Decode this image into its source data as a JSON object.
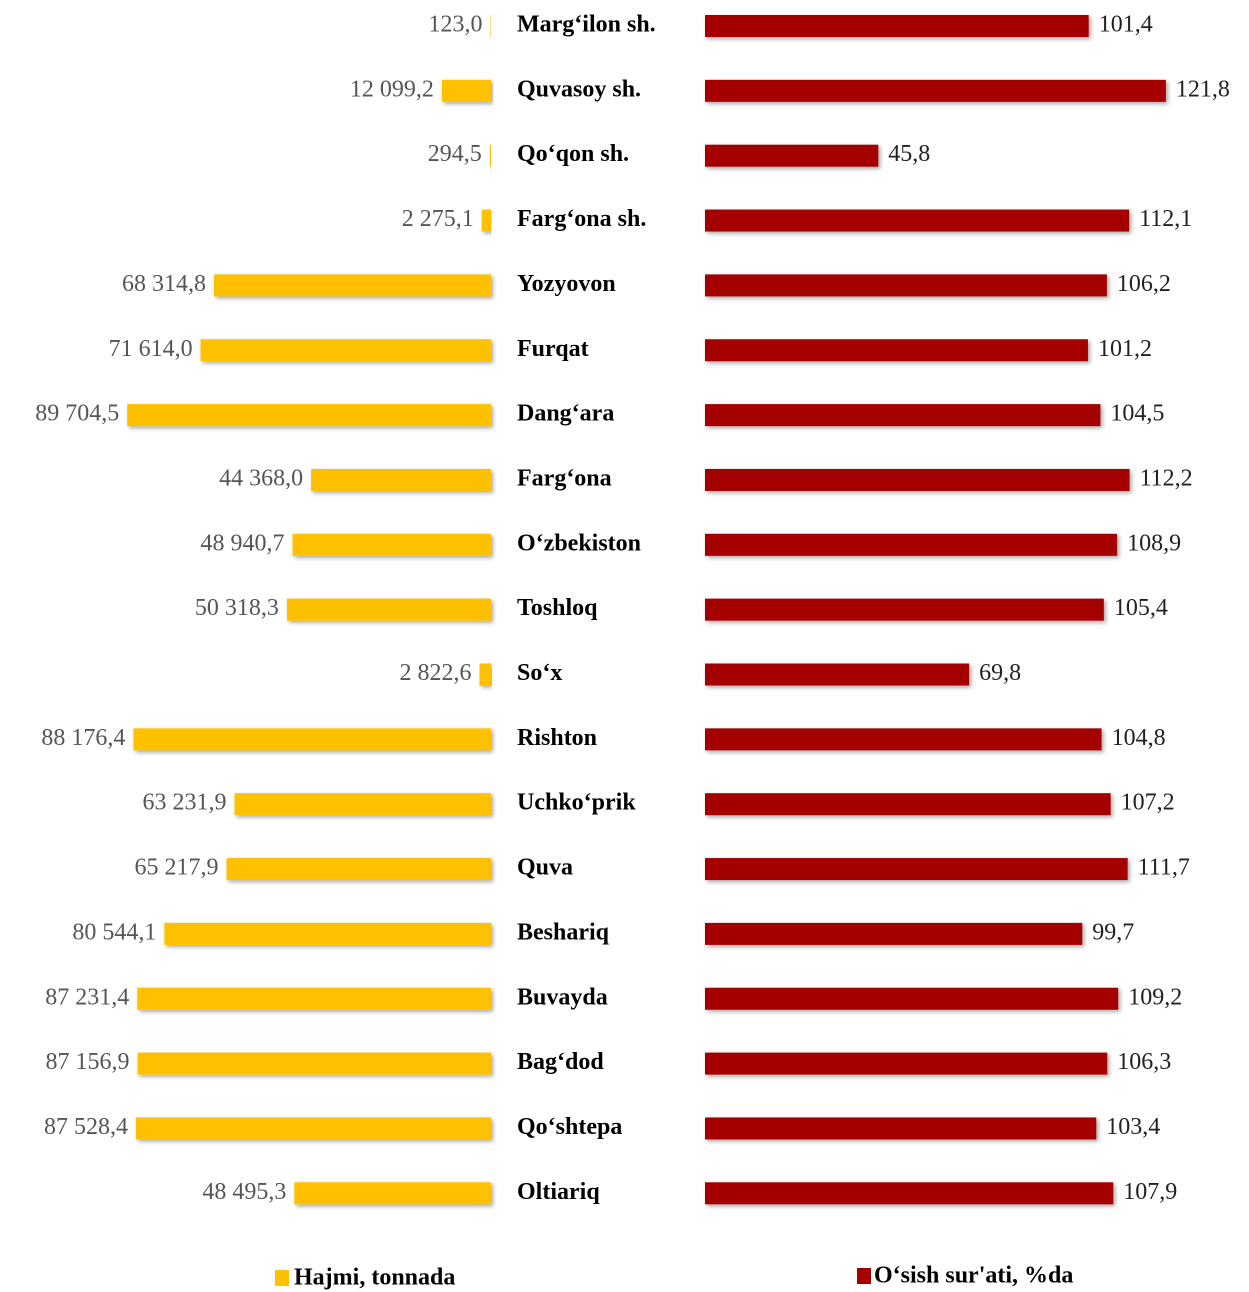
{
  "chart_data": {
    "type": "bar",
    "orientation": "horizontal",
    "categories": [
      "Marg‘ilon sh.",
      "Quvasoy sh.",
      "Qo‘qon sh.",
      "Farg‘ona sh.",
      "Yozyovon",
      "Furqat",
      "Dang‘ara",
      "Farg‘ona",
      "O‘zbekiston",
      "Toshloq",
      "So‘x",
      "Rishton",
      "Uchko‘prik",
      "Quva",
      "Beshariq",
      "Buvayda",
      "Bag‘dod",
      "Qo‘shtepa",
      "Oltiariq"
    ],
    "series": [
      {
        "name": "Hajmi, tonnada",
        "color": "#FFC000",
        "xlim": [
          0,
          90000
        ],
        "values": [
          123.0,
          12099.2,
          294.5,
          2275.1,
          68314.8,
          71614.0,
          89704.5,
          44368.0,
          48940.7,
          50318.3,
          2822.6,
          88176.4,
          63231.9,
          65217.9,
          80544.1,
          87231.4,
          87156.9,
          87528.4,
          48495.3
        ],
        "value_labels": [
          "123,0",
          "12 099,2",
          "294,5",
          "2 275,1",
          "68 314,8",
          "71 614,0",
          "89 704,5",
          "44 368,0",
          "48 940,7",
          "50 318,3",
          "2 822,6",
          "88 176,4",
          "63 231,9",
          "65 217,9",
          "80 544,1",
          "87 231,4",
          "87 156,9",
          "87 528,4",
          "48 495,3"
        ]
      },
      {
        "name": "O‘sish sur'ati, %da",
        "color": "#A50000",
        "xlim": [
          0,
          125
        ],
        "values": [
          101.4,
          121.8,
          45.8,
          112.1,
          106.2,
          101.2,
          104.5,
          112.2,
          108.9,
          105.4,
          69.8,
          104.8,
          107.2,
          111.7,
          99.7,
          109.2,
          106.3,
          103.4,
          107.9
        ],
        "value_labels": [
          "101,4",
          "121,8",
          "45,8",
          "112,1",
          "106,2",
          "101,2",
          "104,5",
          "112,2",
          "108,9",
          "105,4",
          "69,8",
          "104,8",
          "107,2",
          "111,7",
          "99,7",
          "109,2",
          "106,3",
          "103,4",
          "107,9"
        ]
      }
    ]
  }
}
